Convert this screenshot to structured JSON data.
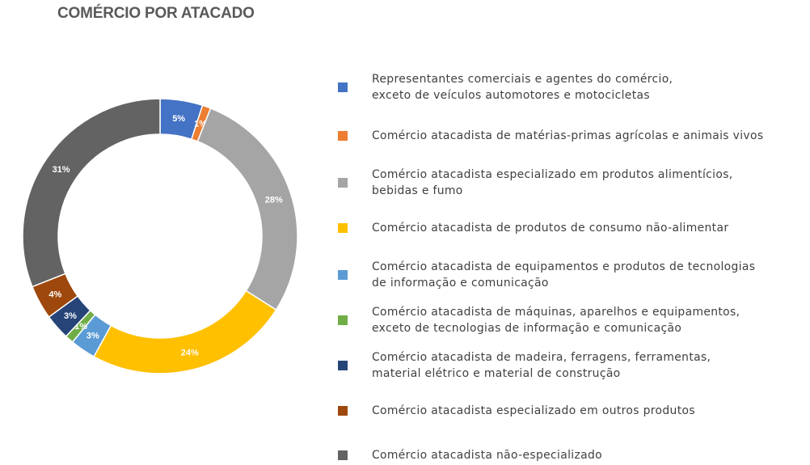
{
  "chart_data": {
    "type": "pie",
    "title": "COMÉRCIO POR ATACADO",
    "categories": [
      "Representantes comerciais e agentes do comércio,\nexceto de veículos automotores e motocicletas",
      "Comércio atacadista de matérias-primas agrícolas e animais vivos",
      "Comércio atacadista especializado em produtos alimentícios,\nbebidas e fumo",
      "Comércio atacadista de produtos de consumo não-alimentar",
      "Comércio atacadista de equipamentos e produtos de tecnologias\nde informação e comunicação",
      "Comércio atacadista de máquinas, aparelhos e equipamentos,\nexceto de tecnologias de informação e comunicação",
      "Comércio atacadista de madeira, ferragens, ferramentas,\nmaterial elétrico e material de construção",
      "Comércio atacadista especializado em outros produtos",
      "Comércio atacadista não-especializado"
    ],
    "values": [
      5,
      1,
      28,
      24,
      3,
      1,
      3,
      4,
      31
    ],
    "labels": [
      "5%",
      "1%",
      "28%",
      "24%",
      "3%",
      "1%",
      "3%",
      "4%",
      "31%"
    ],
    "colors": [
      "#4472C4",
      "#ED7D31",
      "#A5A5A5",
      "#FFC000",
      "#5B9BD5",
      "#70AD47",
      "#264478",
      "#9E480E",
      "#636363"
    ],
    "legend_position": "right"
  }
}
